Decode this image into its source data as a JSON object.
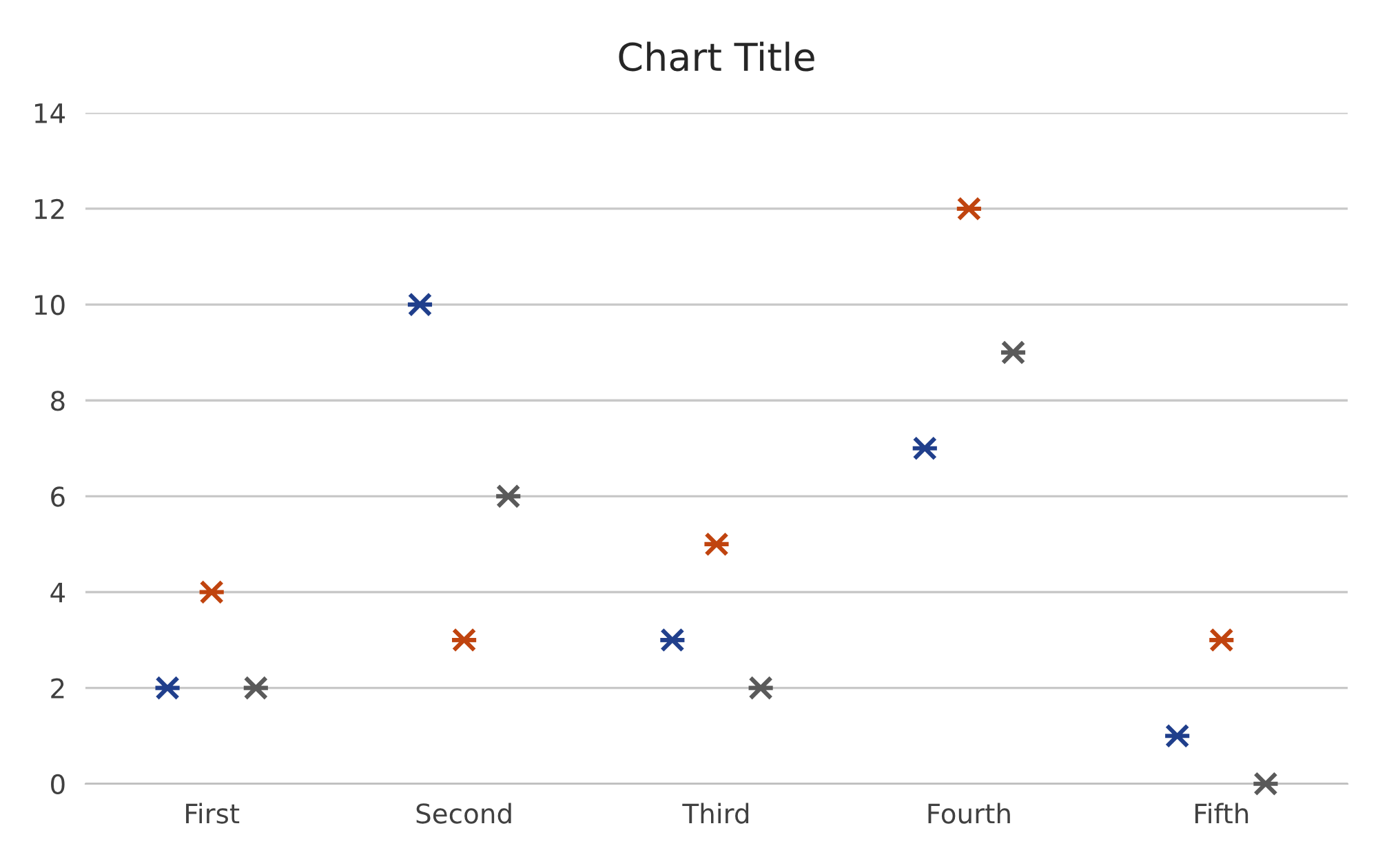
{
  "chart_data": {
    "type": "scatter",
    "title": "Chart Title",
    "categories": [
      "First",
      "Second",
      "Third",
      "Fourth",
      "Fifth"
    ],
    "series": [
      {
        "color": "#203f8c",
        "values": [
          2,
          10,
          3,
          7,
          1
        ]
      },
      {
        "color": "#c0440f",
        "values": [
          4,
          3,
          5,
          12,
          3
        ]
      },
      {
        "color": "#5a5a5a",
        "values": [
          2,
          6,
          2,
          9,
          0
        ]
      }
    ],
    "ylim": [
      0,
      14
    ],
    "yticks": [
      0,
      2,
      4,
      6,
      8,
      10,
      12,
      14
    ],
    "grid": "y",
    "marker": "cross"
  }
}
